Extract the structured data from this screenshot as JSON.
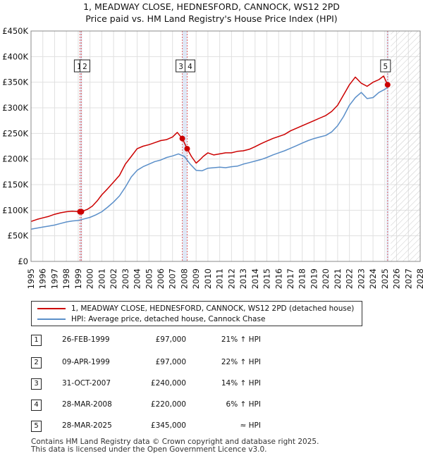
{
  "chart_data": {
    "type": "line",
    "title": "1, MEADWAY CLOSE, HEDNESFORD, CANNOCK, WS12 2PD",
    "subtitle": "Price paid vs. HM Land Registry's House Price Index (HPI)",
    "xlabel": "",
    "ylabel": "",
    "xlim": [
      1995,
      2028
    ],
    "ylim": [
      0,
      450000
    ],
    "x_ticks": [
      1995,
      1996,
      1997,
      1998,
      1999,
      2000,
      2001,
      2002,
      2003,
      2004,
      2005,
      2006,
      2007,
      2008,
      2009,
      2010,
      2011,
      2012,
      2013,
      2014,
      2015,
      2016,
      2017,
      2018,
      2019,
      2020,
      2021,
      2022,
      2023,
      2024,
      2025,
      2026,
      2027,
      2028
    ],
    "y_ticks": [
      {
        "value": 0,
        "label": "£0"
      },
      {
        "value": 50000,
        "label": "£50K"
      },
      {
        "value": 100000,
        "label": "£100K"
      },
      {
        "value": 150000,
        "label": "£150K"
      },
      {
        "value": 200000,
        "label": "£200K"
      },
      {
        "value": 250000,
        "label": "£250K"
      },
      {
        "value": 300000,
        "label": "£300K"
      },
      {
        "value": 350000,
        "label": "£350K"
      },
      {
        "value": 400000,
        "label": "£400K"
      },
      {
        "value": 450000,
        "label": "£450K"
      }
    ],
    "grid": true,
    "forecast_start": 2025.5,
    "series": [
      {
        "name": "1, MEADWAY CLOSE, HEDNESFORD, CANNOCK, WS12 2PD (detached house)",
        "color": "#cc0000",
        "x": [
          1995,
          1995.5,
          1996,
          1996.5,
          1997,
          1997.5,
          1998,
          1998.5,
          1999.15,
          1999.27,
          1999.8,
          2000.2,
          2000.6,
          2001,
          2001.5,
          2002,
          2002.5,
          2003,
          2003.5,
          2004,
          2004.5,
          2005,
          2005.5,
          2006,
          2006.5,
          2007,
          2007.4,
          2007.83,
          2008.24,
          2008.6,
          2009,
          2009.3,
          2009.6,
          2010,
          2010.5,
          2011,
          2011.5,
          2012,
          2012.5,
          2013,
          2013.5,
          2014,
          2014.5,
          2015,
          2015.5,
          2016,
          2016.5,
          2017,
          2017.5,
          2018,
          2018.5,
          2019,
          2019.5,
          2020,
          2020.5,
          2021,
          2021.5,
          2022,
          2022.5,
          2023,
          2023.5,
          2024,
          2024.5,
          2024.9,
          2025.24
        ],
        "y": [
          78000,
          82000,
          85000,
          88000,
          92000,
          95000,
          97000,
          98000,
          97000,
          97000,
          102000,
          108000,
          118000,
          130000,
          142000,
          155000,
          168000,
          190000,
          205000,
          220000,
          225000,
          228000,
          232000,
          236000,
          238000,
          243000,
          252000,
          240000,
          220000,
          205000,
          192000,
          198000,
          205000,
          212000,
          208000,
          210000,
          212000,
          212000,
          215000,
          216000,
          219000,
          224000,
          230000,
          235000,
          240000,
          244000,
          248000,
          255000,
          260000,
          265000,
          270000,
          275000,
          280000,
          285000,
          293000,
          305000,
          325000,
          345000,
          360000,
          348000,
          342000,
          350000,
          355000,
          362000,
          345000
        ]
      },
      {
        "name": "HPI: Average price, detached house, Cannock Chase",
        "color": "#5b8fc9",
        "x": [
          1995,
          1995.5,
          1996,
          1996.5,
          1997,
          1997.5,
          1998,
          1998.5,
          1999,
          1999.5,
          2000,
          2000.5,
          2001,
          2001.5,
          2002,
          2002.5,
          2003,
          2003.5,
          2004,
          2004.5,
          2005,
          2005.5,
          2006,
          2006.5,
          2007,
          2007.5,
          2008,
          2008.5,
          2009,
          2009.5,
          2010,
          2010.5,
          2011,
          2011.5,
          2012,
          2012.5,
          2013,
          2013.5,
          2014,
          2014.5,
          2015,
          2015.5,
          2016,
          2016.5,
          2017,
          2017.5,
          2018,
          2018.5,
          2019,
          2019.5,
          2020,
          2020.5,
          2021,
          2021.5,
          2022,
          2022.5,
          2023,
          2023.5,
          2024,
          2024.5,
          2025,
          2025.24
        ],
        "y": [
          63000,
          65000,
          67000,
          69000,
          71000,
          74000,
          77000,
          79000,
          80000,
          83000,
          86000,
          91000,
          97000,
          106000,
          116000,
          128000,
          145000,
          165000,
          178000,
          185000,
          190000,
          195000,
          198000,
          203000,
          206000,
          210000,
          205000,
          190000,
          178000,
          177000,
          182000,
          183000,
          184000,
          183000,
          185000,
          186000,
          190000,
          193000,
          196000,
          199000,
          203000,
          208000,
          212000,
          216000,
          221000,
          226000,
          231000,
          236000,
          240000,
          243000,
          246000,
          253000,
          265000,
          283000,
          305000,
          320000,
          330000,
          318000,
          320000,
          330000,
          336000,
          340000
        ]
      }
    ],
    "sales": [
      {
        "id": "1",
        "x": 1999.15,
        "y": 97000
      },
      {
        "id": "2",
        "x": 1999.27,
        "y": 97000
      },
      {
        "id": "3",
        "x": 2007.83,
        "y": 240000
      },
      {
        "id": "4",
        "x": 2008.24,
        "y": 220000
      },
      {
        "id": "5",
        "x": 2025.24,
        "y": 345000
      }
    ]
  },
  "chart_title_line1": "1, MEADWAY CLOSE, HEDNESFORD, CANNOCK, WS12 2PD",
  "chart_title_line2": "Price paid vs. HM Land Registry's House Price Index (HPI)",
  "legend": {
    "property": "1, MEADWAY CLOSE, HEDNESFORD, CANNOCK, WS12 2PD (detached house)",
    "hpi": "HPI: Average price, detached house, Cannock Chase"
  },
  "transactions": [
    {
      "num": "1",
      "date": "26-FEB-1999",
      "price": "£97,000",
      "hpi": "21% ↑ HPI"
    },
    {
      "num": "2",
      "date": "09-APR-1999",
      "price": "£97,000",
      "hpi": "22% ↑ HPI"
    },
    {
      "num": "3",
      "date": "31-OCT-2007",
      "price": "£240,000",
      "hpi": "14% ↑ HPI"
    },
    {
      "num": "4",
      "date": "28-MAR-2008",
      "price": "£220,000",
      "hpi": "6% ↑ HPI"
    },
    {
      "num": "5",
      "date": "28-MAR-2025",
      "price": "£345,000",
      "hpi": "≈ HPI"
    }
  ],
  "footer": {
    "line1": "Contains HM Land Registry data © Crown copyright and database right 2025.",
    "line2": "This data is licensed under the Open Government Licence v3.0."
  },
  "colors": {
    "property_line": "#cc0000",
    "hpi_line": "#5b8fc9",
    "sale_marker_line": "#e06060",
    "sale_band": "#dde6f5",
    "forecast_hatch": "#c8c8c8",
    "grid": "#e0e0e0"
  }
}
